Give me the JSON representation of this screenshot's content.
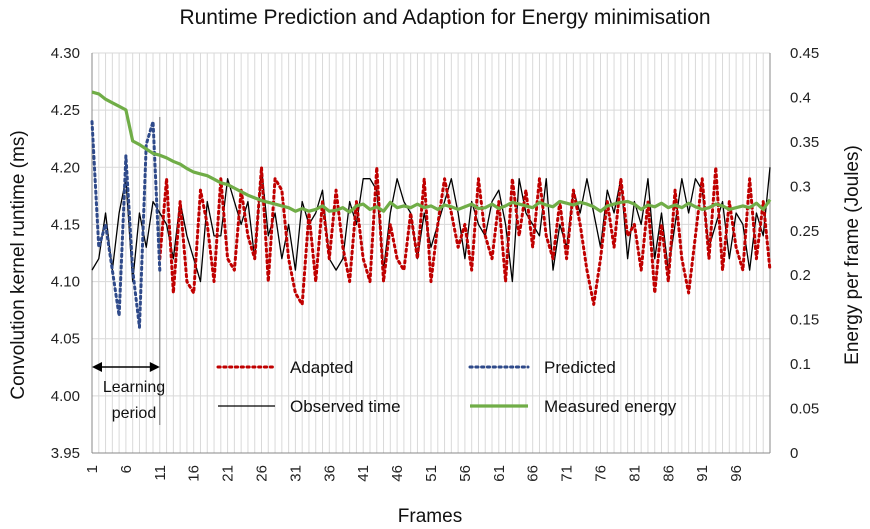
{
  "chart_data": {
    "type": "line",
    "title": "Runtime Prediction and Adaption for Energy minimisation",
    "xlabel": "Frames",
    "ylabel_left": "Convolution kernel runtime (ms)",
    "ylabel_right": "Energy per frame (Joules)",
    "x_ticks": [
      "1",
      "6",
      "11",
      "16",
      "21",
      "26",
      "31",
      "36",
      "41",
      "46",
      "51",
      "56",
      "61",
      "66",
      "71",
      "76",
      "81",
      "86",
      "91",
      "96"
    ],
    "y_left_ticks": [
      "3.95",
      "4.00",
      "4.05",
      "4.10",
      "4.15",
      "4.20",
      "4.25",
      "4.30"
    ],
    "y_right_ticks": [
      "0",
      "0.05",
      "0.1",
      "0.15",
      "0.2",
      "0.25",
      "0.3",
      "0.35",
      "0.4",
      "0.45"
    ],
    "ylim_left": [
      3.95,
      4.3
    ],
    "ylim_right": [
      0,
      0.45
    ],
    "xlim": [
      1,
      101
    ],
    "grid": true,
    "legend_placement": "bottom-center inside plot",
    "annotation": {
      "line1": "Learning",
      "line2": "period",
      "x_start": 1,
      "x_end": 11
    },
    "series": [
      {
        "name": "Adapted",
        "axis": "left",
        "style": "dotted",
        "color": "#C00000",
        "x": [
          11,
          12,
          13,
          14,
          15,
          16,
          17,
          18,
          19,
          20,
          21,
          22,
          23,
          24,
          25,
          26,
          27,
          28,
          29,
          30,
          31,
          32,
          33,
          34,
          35,
          36,
          37,
          38,
          39,
          40,
          41,
          42,
          43,
          44,
          45,
          46,
          47,
          48,
          49,
          50,
          51,
          52,
          53,
          54,
          55,
          56,
          57,
          58,
          59,
          60,
          61,
          62,
          63,
          64,
          65,
          66,
          67,
          68,
          69,
          70,
          71,
          72,
          73,
          74,
          75,
          76,
          77,
          78,
          79,
          80,
          81,
          82,
          83,
          84,
          85,
          86,
          87,
          88,
          89,
          90,
          91,
          92,
          93,
          94,
          95,
          96,
          97,
          98,
          99,
          100,
          101
        ],
        "values": [
          4.12,
          4.19,
          4.09,
          4.17,
          4.1,
          4.09,
          4.18,
          4.15,
          4.1,
          4.19,
          4.12,
          4.11,
          4.18,
          4.14,
          4.12,
          4.2,
          4.1,
          4.19,
          4.18,
          4.12,
          4.09,
          4.08,
          4.16,
          4.1,
          4.17,
          4.12,
          4.18,
          4.13,
          4.1,
          4.17,
          4.12,
          4.1,
          4.2,
          4.1,
          4.15,
          4.12,
          4.11,
          4.16,
          4.12,
          4.19,
          4.1,
          4.15,
          4.19,
          4.16,
          4.13,
          4.15,
          4.11,
          4.19,
          4.14,
          4.12,
          4.17,
          4.1,
          4.19,
          4.14,
          4.18,
          4.13,
          4.19,
          4.14,
          4.12,
          4.17,
          4.12,
          4.18,
          4.15,
          4.11,
          4.08,
          4.12,
          4.17,
          4.13,
          4.19,
          4.14,
          4.15,
          4.11,
          4.17,
          4.09,
          4.15,
          4.1,
          4.18,
          4.12,
          4.09,
          4.14,
          4.19,
          4.12,
          4.2,
          4.11,
          4.17,
          4.13,
          4.11,
          4.19,
          4.12,
          4.17,
          4.11
        ]
      },
      {
        "name": "Predicted",
        "axis": "left",
        "style": "dotted",
        "color": "#2F4A8A",
        "x": [
          1,
          2,
          3,
          4,
          5,
          6,
          7,
          8,
          9,
          10,
          11
        ],
        "values": [
          4.24,
          4.13,
          4.15,
          4.11,
          4.07,
          4.21,
          4.11,
          4.06,
          4.22,
          4.24,
          4.11
        ]
      },
      {
        "name": "Observed time",
        "axis": "left",
        "style": "solid",
        "color": "#000000",
        "x": [
          1,
          2,
          3,
          4,
          5,
          6,
          7,
          8,
          9,
          10,
          11,
          12,
          13,
          14,
          15,
          16,
          17,
          18,
          19,
          20,
          21,
          22,
          23,
          24,
          25,
          26,
          27,
          28,
          29,
          30,
          31,
          32,
          33,
          34,
          35,
          36,
          37,
          38,
          39,
          40,
          41,
          42,
          43,
          44,
          45,
          46,
          47,
          48,
          49,
          50,
          51,
          52,
          53,
          54,
          55,
          56,
          57,
          58,
          59,
          60,
          61,
          62,
          63,
          64,
          65,
          66,
          67,
          68,
          69,
          70,
          71,
          72,
          73,
          74,
          75,
          76,
          77,
          78,
          79,
          80,
          81,
          82,
          83,
          84,
          85,
          86,
          87,
          88,
          89,
          90,
          91,
          92,
          93,
          94,
          95,
          96,
          97,
          98,
          99,
          100,
          101
        ],
        "values": [
          4.11,
          4.12,
          4.16,
          4.11,
          4.16,
          4.19,
          4.1,
          4.16,
          4.13,
          4.17,
          4.16,
          4.15,
          4.12,
          4.17,
          4.14,
          4.12,
          4.1,
          4.17,
          4.14,
          4.14,
          4.19,
          4.17,
          4.15,
          4.17,
          4.12,
          4.2,
          4.14,
          4.16,
          4.12,
          4.15,
          4.11,
          4.17,
          4.15,
          4.16,
          4.18,
          4.12,
          4.11,
          4.12,
          4.17,
          4.15,
          4.19,
          4.19,
          4.18,
          4.11,
          4.16,
          4.19,
          4.17,
          4.16,
          4.12,
          4.16,
          4.13,
          4.15,
          4.17,
          4.19,
          4.16,
          4.12,
          4.17,
          4.15,
          4.14,
          4.17,
          4.18,
          4.15,
          4.1,
          4.19,
          4.16,
          4.15,
          4.14,
          4.19,
          4.11,
          4.15,
          4.13,
          4.18,
          4.16,
          4.19,
          4.16,
          4.13,
          4.18,
          4.16,
          4.19,
          4.12,
          4.17,
          4.15,
          4.19,
          4.12,
          4.16,
          4.11,
          4.15,
          4.19,
          4.16,
          4.19,
          4.18,
          4.13,
          4.15,
          4.17,
          4.12,
          4.16,
          4.15,
          4.11,
          4.16,
          4.14,
          4.2
        ]
      },
      {
        "name": "Measured energy",
        "axis": "right",
        "style": "solid",
        "color": "#70AD47",
        "x": [
          1,
          2,
          3,
          4,
          5,
          6,
          7,
          8,
          9,
          10,
          11,
          12,
          13,
          14,
          15,
          16,
          17,
          18,
          19,
          20,
          21,
          22,
          23,
          24,
          25,
          26,
          27,
          28,
          29,
          30,
          31,
          32,
          33,
          34,
          35,
          36,
          37,
          38,
          39,
          40,
          41,
          42,
          43,
          44,
          45,
          46,
          47,
          48,
          49,
          50,
          51,
          52,
          53,
          54,
          55,
          56,
          57,
          58,
          59,
          60,
          61,
          62,
          63,
          64,
          65,
          66,
          67,
          68,
          69,
          70,
          71,
          72,
          73,
          74,
          75,
          76,
          77,
          78,
          79,
          80,
          81,
          82,
          83,
          84,
          85,
          86,
          87,
          88,
          89,
          90,
          91,
          92,
          93,
          94,
          95,
          96,
          97,
          98,
          99,
          100,
          101
        ],
        "values": [
          0.406,
          0.404,
          0.398,
          0.394,
          0.39,
          0.386,
          0.351,
          0.347,
          0.342,
          0.337,
          0.335,
          0.332,
          0.328,
          0.325,
          0.32,
          0.316,
          0.314,
          0.312,
          0.308,
          0.304,
          0.302,
          0.298,
          0.294,
          0.29,
          0.287,
          0.284,
          0.282,
          0.28,
          0.278,
          0.276,
          0.272,
          0.275,
          0.272,
          0.274,
          0.278,
          0.272,
          0.273,
          0.276,
          0.271,
          0.278,
          0.28,
          0.274,
          0.277,
          0.272,
          0.282,
          0.276,
          0.278,
          0.276,
          0.28,
          0.276,
          0.278,
          0.274,
          0.279,
          0.277,
          0.274,
          0.277,
          0.28,
          0.275,
          0.276,
          0.28,
          0.275,
          0.278,
          0.282,
          0.28,
          0.278,
          0.276,
          0.282,
          0.279,
          0.277,
          0.283,
          0.281,
          0.279,
          0.282,
          0.28,
          0.277,
          0.272,
          0.278,
          0.28,
          0.282,
          0.283,
          0.28,
          0.274,
          0.279,
          0.277,
          0.281,
          0.276,
          0.279,
          0.276,
          0.281,
          0.277,
          0.274,
          0.276,
          0.28,
          0.278,
          0.274,
          0.276,
          0.278,
          0.276,
          0.281,
          0.274,
          0.285
        ]
      }
    ]
  },
  "colors": {
    "grid": "#D9D9D9",
    "axis": "#888888"
  }
}
